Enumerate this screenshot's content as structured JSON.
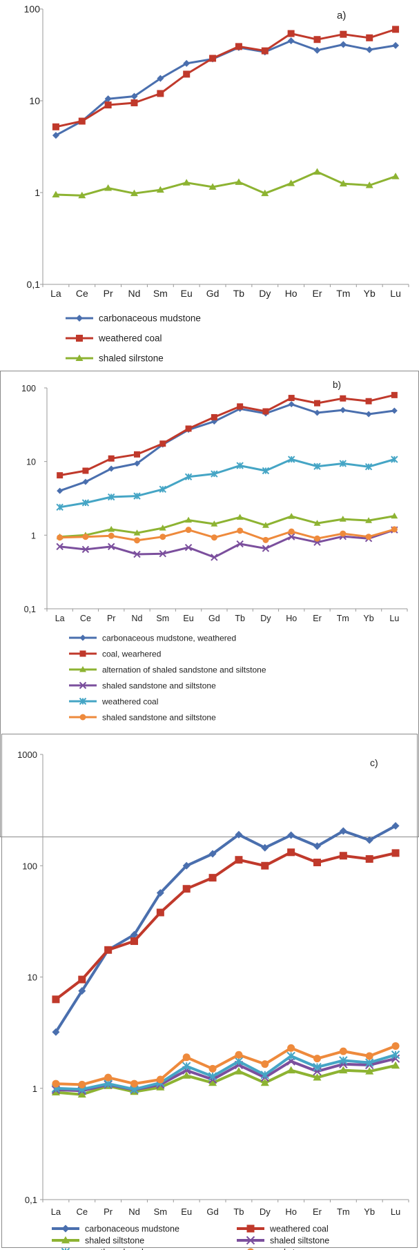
{
  "chart_data": [
    {
      "type": "line",
      "panel_label": "a)",
      "yscale": "log",
      "ylim": [
        0.1,
        100
      ],
      "y_tick_labels": [
        "0,1",
        "1",
        "10",
        "100"
      ],
      "categories": [
        "La",
        "Ce",
        "Pr",
        "Nd",
        "Sm",
        "Eu",
        "Gd",
        "Tb",
        "Dy",
        "Ho",
        "Er",
        "Tm",
        "Yb",
        "Lu"
      ],
      "legend_position": "bottom",
      "series": [
        {
          "name": "carbonaceous mudstone",
          "color": "#4a6fae",
          "marker": "diamond",
          "values": [
            4.2,
            6.0,
            10.5,
            11.2,
            17.5,
            25.5,
            28.5,
            38.0,
            34.0,
            45.0,
            35.5,
            41.0,
            36.0,
            40.0
          ]
        },
        {
          "name": "weathered coal",
          "color": "#c0392b",
          "marker": "square",
          "values": [
            5.2,
            6.0,
            9.0,
            9.5,
            12.0,
            19.5,
            29.0,
            39.0,
            35.0,
            54.0,
            46.5,
            53.0,
            48.5,
            60.0
          ]
        },
        {
          "name": "shaled silrstone",
          "color": "#8db332",
          "marker": "triangle",
          "values": [
            0.95,
            0.93,
            1.12,
            0.98,
            1.07,
            1.28,
            1.15,
            1.3,
            0.98,
            1.26,
            1.68,
            1.25,
            1.2,
            1.5
          ]
        }
      ]
    },
    {
      "type": "line",
      "panel_label": "b)",
      "yscale": "log",
      "ylim": [
        0.1,
        100
      ],
      "y_tick_labels": [
        "0,1",
        "1",
        "10",
        "100"
      ],
      "categories": [
        "La",
        "Ce",
        "Pr",
        "Nd",
        "Sm",
        "Eu",
        "Gd",
        "Tb",
        "Dy",
        "Ho",
        "Er",
        "Tm",
        "Yb",
        "Lu"
      ],
      "legend_position": "bottom",
      "series": [
        {
          "name": "carbonaceous mudstone, weathered",
          "color": "#4a6fae",
          "marker": "diamond",
          "values": [
            4.0,
            5.3,
            8.0,
            9.4,
            17.0,
            27.0,
            35.0,
            52.0,
            45.0,
            60.0,
            46.0,
            50.0,
            44.0,
            49.0
          ]
        },
        {
          "name": "coal, wearhered",
          "color": "#c0392b",
          "marker": "square",
          "values": [
            6.5,
            7.5,
            11.0,
            12.5,
            17.5,
            28.0,
            40.0,
            56.0,
            48.0,
            73.0,
            62.0,
            72.0,
            66.0,
            80.0
          ]
        },
        {
          "name": "alternation of  shaled  sandstone and siltstone",
          "color": "#8db332",
          "marker": "triangle",
          "values": [
            0.95,
            1.0,
            1.2,
            1.07,
            1.25,
            1.6,
            1.42,
            1.75,
            1.36,
            1.8,
            1.45,
            1.65,
            1.58,
            1.82
          ]
        },
        {
          "name": "shaled sandstone and siltstone",
          "color": "#7b4f9d",
          "marker": "x",
          "values": [
            0.7,
            0.64,
            0.7,
            0.55,
            0.56,
            0.68,
            0.5,
            0.76,
            0.66,
            0.95,
            0.8,
            0.96,
            0.9,
            1.18
          ]
        },
        {
          "name": "weathered coal",
          "color": "#45a5c5",
          "marker": "star",
          "values": [
            2.4,
            2.75,
            3.3,
            3.4,
            4.2,
            6.2,
            6.8,
            8.8,
            7.5,
            10.7,
            8.6,
            9.4,
            8.5,
            10.7
          ]
        },
        {
          "name": "shaled sandstone and siltstone",
          "color": "#ee8a3c",
          "marker": "circle",
          "values": [
            0.93,
            0.95,
            0.98,
            0.85,
            0.95,
            1.18,
            0.93,
            1.15,
            0.86,
            1.12,
            0.9,
            1.05,
            0.95,
            1.2
          ]
        }
      ]
    },
    {
      "type": "line",
      "panel_label": "c)",
      "yscale": "log",
      "ylim": [
        0.1,
        1000
      ],
      "y_tick_labels": [
        "0,1",
        "1",
        "10",
        "100",
        "1000"
      ],
      "categories": [
        "La",
        "Ce",
        "Pr",
        "Nd",
        "Sm",
        "Eu",
        "Gd",
        "Tb",
        "Dy",
        "Ho",
        "Er",
        "Tm",
        "Yb",
        "Lu"
      ],
      "legend_position": "bottom",
      "series": [
        {
          "name": "carbonaceous mudstone",
          "color": "#4a6fae",
          "marker": "diamond",
          "values": [
            3.2,
            7.5,
            17.5,
            24.0,
            57.0,
            100.0,
            128.0,
            190.0,
            145.0,
            188.0,
            150.0,
            205.0,
            170.0,
            228.0
          ]
        },
        {
          "name": "weathered coal",
          "color": "#c0392b",
          "marker": "square",
          "values": [
            6.3,
            9.5,
            17.5,
            21.0,
            38.0,
            62.0,
            78.0,
            113.0,
            100.0,
            132.0,
            107.0,
            123.0,
            115.0,
            130.0
          ]
        },
        {
          "name": "shaled siltstone",
          "color": "#8db332",
          "marker": "triangle",
          "values": [
            0.92,
            0.88,
            1.05,
            0.93,
            1.02,
            1.3,
            1.12,
            1.42,
            1.12,
            1.45,
            1.25,
            1.45,
            1.42,
            1.6
          ]
        },
        {
          "name": "shaled siltstone",
          "color": "#7b4f9d",
          "marker": "x",
          "values": [
            0.97,
            0.95,
            1.08,
            0.97,
            1.08,
            1.45,
            1.2,
            1.62,
            1.25,
            1.75,
            1.42,
            1.65,
            1.62,
            1.85
          ]
        },
        {
          "name": "weathered coal",
          "color": "#45a5c5",
          "marker": "star",
          "values": [
            1.0,
            0.98,
            1.1,
            0.98,
            1.12,
            1.58,
            1.28,
            1.75,
            1.32,
            1.95,
            1.55,
            1.78,
            1.7,
            2.0
          ]
        },
        {
          "name": "coal stone",
          "color": "#ee8a3c",
          "marker": "circle",
          "values": [
            1.1,
            1.08,
            1.25,
            1.1,
            1.2,
            1.9,
            1.5,
            2.0,
            1.65,
            2.3,
            1.85,
            2.15,
            1.95,
            2.4
          ]
        }
      ]
    }
  ]
}
